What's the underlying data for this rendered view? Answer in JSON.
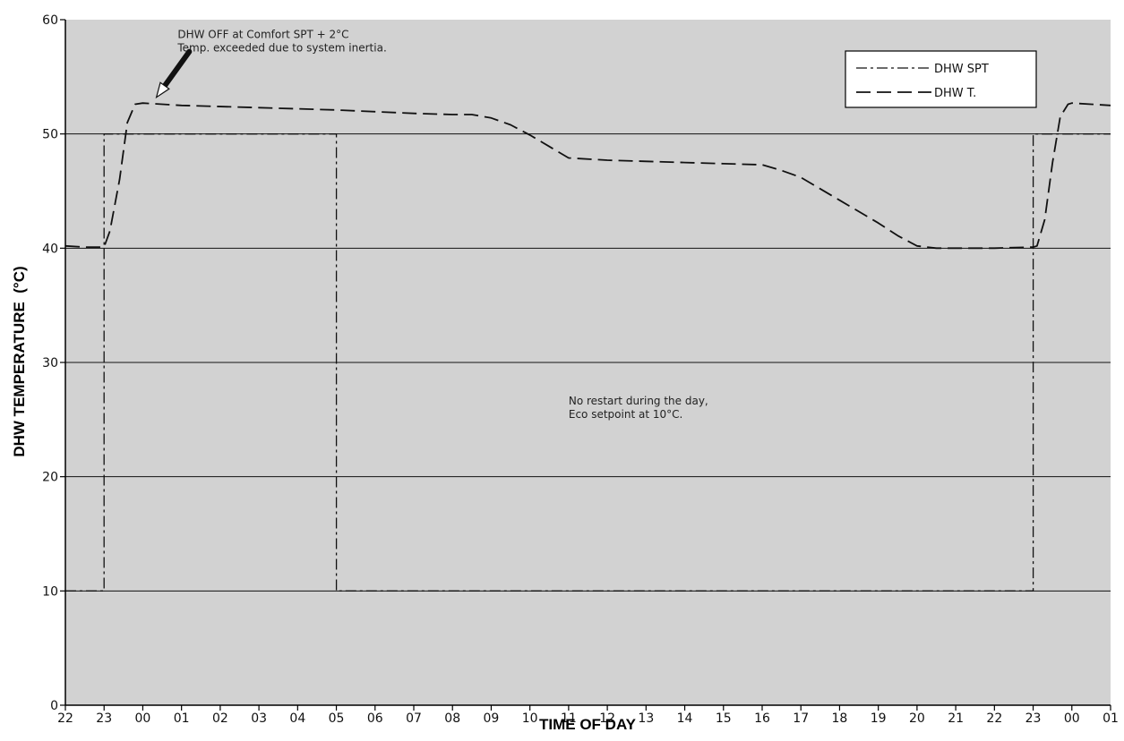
{
  "chart_data": {
    "type": "line",
    "xlabel": "TIME OF DAY",
    "ylabel": "DHW TEMPERATURE  (°C)",
    "ylim": [
      0,
      60
    ],
    "yticks": [
      0,
      10,
      20,
      30,
      40,
      50,
      60
    ],
    "x_tick_labels": [
      "22",
      "23",
      "00",
      "01",
      "02",
      "03",
      "04",
      "05",
      "06",
      "07",
      "08",
      "09",
      "10",
      "11",
      "12",
      "13",
      "14",
      "15",
      "16",
      "17",
      "18",
      "19",
      "20",
      "21",
      "22",
      "23",
      "00",
      "01"
    ],
    "grid": "horizontal",
    "legend_position": "top-right",
    "colors": {
      "plot_background": "#d2d2d2",
      "line": "#111111"
    },
    "series": [
      {
        "name": "DHW SPT",
        "style": "dash-dot",
        "x": [
          0,
          1,
          1,
          7,
          7,
          25,
          25,
          27
        ],
        "y": [
          10,
          10,
          50,
          50,
          10,
          10,
          50,
          50
        ]
      },
      {
        "name": "DHW T.",
        "style": "long-dash",
        "x": [
          0,
          0.5,
          1,
          1.15,
          1.4,
          1.6,
          1.8,
          2,
          3,
          5,
          7,
          9,
          10,
          10.5,
          11,
          11.5,
          12,
          12.5,
          13,
          14,
          15,
          16,
          17,
          18,
          18.5,
          19,
          20,
          21,
          21.5,
          22,
          22.5,
          23,
          24,
          25,
          25.1,
          25.3,
          25.5,
          25.7,
          25.9,
          26,
          26.5,
          27
        ],
        "y": [
          40.2,
          40.1,
          40.1,
          41.5,
          46,
          51,
          52.6,
          52.7,
          52.5,
          52.3,
          52.1,
          51.8,
          51.7,
          51.7,
          51.4,
          50.8,
          49.9,
          48.9,
          47.9,
          47.7,
          47.6,
          47.5,
          47.4,
          47.3,
          46.8,
          46.2,
          44.2,
          42.2,
          41.1,
          40.2,
          40.0,
          40.0,
          40.0,
          40.1,
          40.2,
          42.5,
          47.5,
          51.5,
          52.6,
          52.7,
          52.6,
          52.5
        ]
      }
    ],
    "annotations": [
      {
        "lines": [
          "DHW OFF at Comfort SPT + 2°C",
          "Temp. exceeded due to system inertia."
        ],
        "x": 2.9,
        "y": 58.4
      },
      {
        "lines": [
          "No restart during the day,",
          "Eco setpoint at 10°C."
        ],
        "x": 13.0,
        "y": 26.3
      }
    ],
    "arrow": {
      "from": [
        3.2,
        57.2
      ],
      "to": [
        2.35,
        53.2
      ]
    }
  }
}
